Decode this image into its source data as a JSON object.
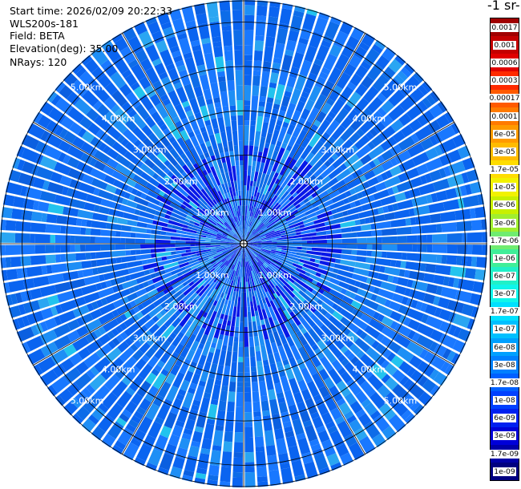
{
  "header": {
    "start_time": "Start time: 2026/02/09 20:22:33",
    "instrument": "WLS200s-181",
    "field": "Field: BETA",
    "elevation": "Elevation(deg): 35.00",
    "nrays": "NRays: 120"
  },
  "colorbar": {
    "unit_label": "-1 sr-",
    "levels": [
      {
        "label": "0.0017",
        "color": "#a00000"
      },
      {
        "label": "0.001",
        "color": "#c40000"
      },
      {
        "label": "0.0006",
        "color": "#e00000"
      },
      {
        "label": "0.0003",
        "color": "#ff2a00"
      },
      {
        "label": "0.00017",
        "color": "#ff5a00"
      },
      {
        "label": "0.0001",
        "color": "#ff7a00"
      },
      {
        "label": "6e-05",
        "color": "#ff9a00"
      },
      {
        "label": "3e-05",
        "color": "#ffbb00"
      },
      {
        "label": "1.7e-05",
        "color": "#ffdd00"
      },
      {
        "label": "1e-05",
        "color": "#f2f200"
      },
      {
        "label": "6e-06",
        "color": "#c8f000"
      },
      {
        "label": "3e-06",
        "color": "#a0ee30"
      },
      {
        "label": "1.7e-06",
        "color": "#70ec70"
      },
      {
        "label": "1e-06",
        "color": "#40ee98"
      },
      {
        "label": "6e-07",
        "color": "#20f0c8"
      },
      {
        "label": "3e-07",
        "color": "#10f5ea"
      },
      {
        "label": "1.7e-07",
        "color": "#00e0ff"
      },
      {
        "label": "1e-07",
        "color": "#00c0ff"
      },
      {
        "label": "6e-08",
        "color": "#00a0ff"
      },
      {
        "label": "3e-08",
        "color": "#0080ff"
      },
      {
        "label": "1.7e-08",
        "color": "#0060ff"
      },
      {
        "label": "1e-08",
        "color": "#0040ff"
      },
      {
        "label": "6e-09",
        "color": "#0020f0"
      },
      {
        "label": "3e-09",
        "color": "#0000d8"
      },
      {
        "label": "1.7e-09",
        "color": "#0000a8"
      },
      {
        "label": "1e-09",
        "color": "#000080"
      }
    ]
  },
  "ppi": {
    "max_range_km": 5.5,
    "range_rings_km": [
      1,
      2,
      3,
      4,
      5
    ],
    "range_labels": [
      "1.00km",
      "2.00km",
      "3.00km",
      "4.00km",
      "5.00km"
    ],
    "dominant_colors": [
      "#0a64f0",
      "#1978ff",
      "#0d6ce8",
      "#1e8ff5",
      "#0b5fe0",
      "#2aa6f2",
      "#0818e8",
      "#22c3ee"
    ]
  }
}
